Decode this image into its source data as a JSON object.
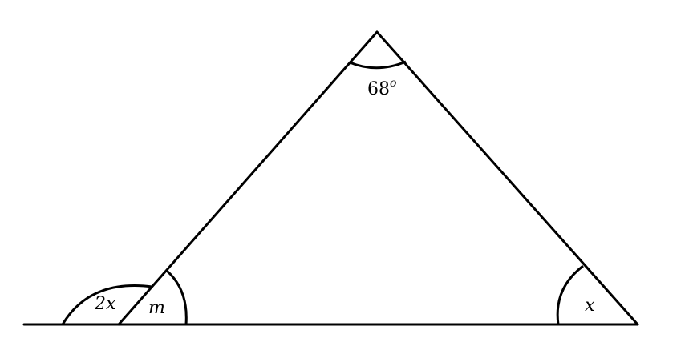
{
  "diagram": {
    "angles": {
      "apex": {
        "value": "68",
        "degree_symbol": "o"
      },
      "left_interior": {
        "label": "m"
      },
      "left_exterior": {
        "label": "2x"
      },
      "right_interior": {
        "label": "x"
      }
    }
  }
}
